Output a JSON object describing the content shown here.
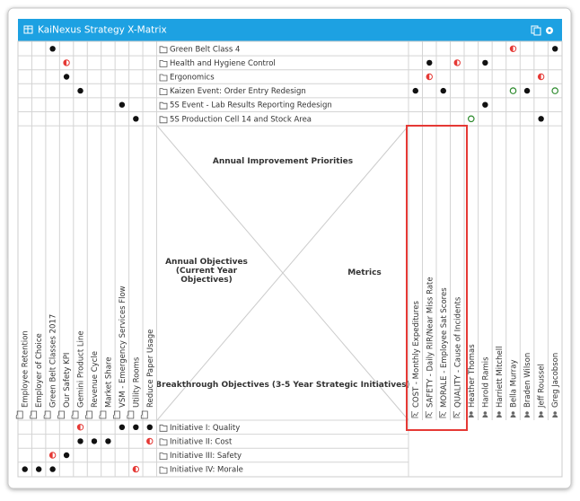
{
  "header": {
    "title": "KaiNexus Strategy X-Matrix"
  },
  "quadrants": {
    "top": "Annual Improvement Priorities",
    "left": "Annual Objectives (Current Year Objectives)",
    "right": "Metrics",
    "bottom": "Breakthrough Objectives (3-5 Year Strategic Initiatives)"
  },
  "annual_objectives": [
    "Employee Retention",
    "Employer of Choice",
    "Green Belt Classes 2017",
    "Our Safety KPI",
    "Gemini Product Line",
    "Revenue Cycle",
    "Market Share",
    "VSM - Emergency Services Flow",
    "Utility Rooms",
    "Reduce Paper Usage"
  ],
  "metrics": [
    "COST - Monthly Expeditures",
    "SAFETY - Daily RIR/Near Miss Rate",
    "MORALE - Employee Sat Scores",
    "QUALITY - Cause of Incidents"
  ],
  "people": [
    "Heather Thomas",
    "Harold Ramis",
    "Harriett Mitchell",
    "Bella Murray",
    "Braden Wilson",
    "Jeff Roussel",
    "Greg Jacobson"
  ],
  "improvement_priorities": [
    {
      "name": "Green Belt Class 4",
      "objectives": [
        null,
        null,
        "full",
        null,
        null,
        null,
        null,
        null,
        null,
        null
      ],
      "metrics": [
        null,
        null,
        null,
        null
      ],
      "people": [
        null,
        null,
        null,
        "half",
        null,
        null,
        "full"
      ]
    },
    {
      "name": "Health and Hygiene Control",
      "objectives": [
        null,
        null,
        null,
        "half",
        null,
        null,
        null,
        null,
        null,
        null
      ],
      "metrics": [
        null,
        "full",
        null,
        "half"
      ],
      "people": [
        null,
        "full",
        null,
        null,
        null,
        null,
        null
      ]
    },
    {
      "name": "Ergonomics",
      "objectives": [
        null,
        null,
        null,
        "full",
        null,
        null,
        null,
        null,
        null,
        null
      ],
      "metrics": [
        null,
        "half",
        null,
        null
      ],
      "people": [
        null,
        null,
        null,
        null,
        null,
        "half",
        null
      ]
    },
    {
      "name": "Kaizen Event: Order Entry Redesign",
      "objectives": [
        null,
        null,
        null,
        null,
        "full",
        null,
        null,
        null,
        null,
        null
      ],
      "metrics": [
        "full",
        null,
        "full",
        null
      ],
      "people": [
        null,
        null,
        null,
        "open",
        "full",
        null,
        "open"
      ]
    },
    {
      "name": "5S Event - Lab Results Reporting Redesign",
      "objectives": [
        null,
        null,
        null,
        null,
        null,
        null,
        null,
        "full",
        null,
        null
      ],
      "metrics": [
        null,
        null,
        null,
        null
      ],
      "people": [
        null,
        "full",
        null,
        null,
        null,
        null,
        null
      ]
    },
    {
      "name": "5S Production Cell 14 and Stock Area",
      "objectives": [
        null,
        null,
        null,
        null,
        null,
        null,
        null,
        null,
        "full",
        null
      ],
      "metrics": [
        null,
        null,
        null,
        null
      ],
      "people": [
        "open",
        null,
        null,
        null,
        null,
        "full",
        null
      ]
    }
  ],
  "breakthrough_objectives": [
    {
      "name": "Initiative I: Quality",
      "objectives": [
        null,
        null,
        null,
        null,
        "half",
        null,
        null,
        "full",
        "full",
        "full"
      ]
    },
    {
      "name": "Initiative II: Cost",
      "objectives": [
        null,
        null,
        null,
        null,
        "full",
        "full",
        "full",
        null,
        null,
        "half"
      ]
    },
    {
      "name": "Initiative III: Safety",
      "objectives": [
        null,
        null,
        "half",
        "full",
        null,
        null,
        null,
        null,
        null,
        null
      ]
    },
    {
      "name": "Initiative IV: Morale",
      "objectives": [
        "full",
        "full",
        "full",
        null,
        null,
        null,
        null,
        null,
        "half",
        null
      ]
    }
  ]
}
